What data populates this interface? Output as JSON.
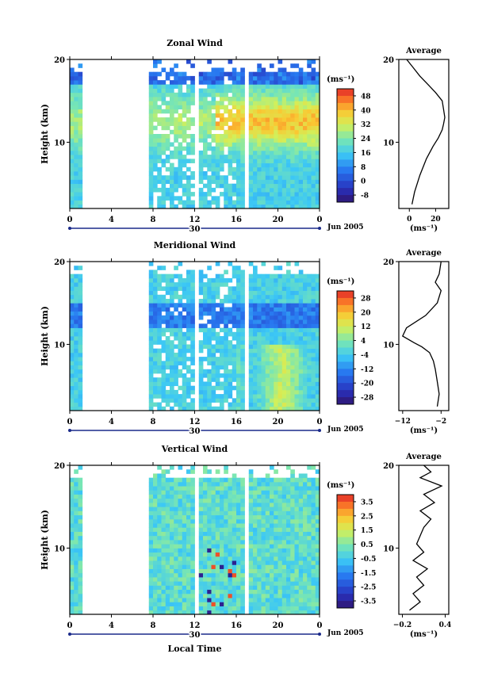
{
  "figure": {
    "xlabel": "Local Time",
    "date_label": "Jun 2005",
    "height_label": "Height (km)",
    "unit_label": "(ms⁻¹)",
    "day_marker": "30"
  },
  "chart_data": [
    {
      "type": "heatmap",
      "title": "Zonal Wind",
      "ylabel": "Height (km)",
      "xlabel": "",
      "xlim": [
        0,
        24
      ],
      "x_ticks": [
        "0",
        "4",
        "8",
        "12",
        "16",
        "20",
        "0"
      ],
      "ylim": [
        2,
        20
      ],
      "y_ticks": [
        "20",
        "10"
      ],
      "colorbar": {
        "unit": "(ms⁻¹)",
        "ticks": [
          48,
          40,
          32,
          24,
          16,
          8,
          0,
          -8
        ],
        "range": [
          -12,
          52
        ]
      },
      "data_gaps_hours": [
        [
          1.3,
          7.8
        ],
        [
          12.0,
          12.4
        ]
      ]
    },
    {
      "type": "line",
      "title": "Average",
      "xlabel": "(ms⁻¹)",
      "xlim": [
        -8,
        30
      ],
      "x_ticks": [
        "0",
        "20"
      ],
      "ylim": [
        2,
        20
      ],
      "y_ticks": [
        "20",
        "10"
      ],
      "series": [
        {
          "x": [
            2,
            4,
            8,
            13,
            18,
            22,
            25,
            26,
            27,
            26,
            25,
            20,
            14,
            8,
            3,
            -2
          ],
          "y": [
            2.5,
            4,
            6,
            8,
            9.5,
            10.5,
            11.5,
            12.2,
            13,
            14,
            15,
            16,
            17,
            18,
            19,
            20
          ]
        }
      ]
    },
    {
      "type": "heatmap",
      "title": "Meridional Wind",
      "ylabel": "Height (km)",
      "xlabel": "",
      "xlim": [
        0,
        24
      ],
      "x_ticks": [
        "0",
        "4",
        "8",
        "12",
        "16",
        "20",
        "0"
      ],
      "ylim": [
        2,
        20
      ],
      "y_ticks": [
        "20",
        "10"
      ],
      "colorbar": {
        "unit": "(ms⁻¹)",
        "ticks": [
          28,
          20,
          12,
          4,
          -4,
          -12,
          -20,
          -28
        ],
        "range": [
          -32,
          32
        ]
      },
      "data_gaps_hours": [
        [
          1.3,
          7.8
        ],
        [
          12.0,
          12.4
        ]
      ]
    },
    {
      "type": "line",
      "title": "Average",
      "xlabel": "(ms⁻¹)",
      "xlim": [
        -13,
        0
      ],
      "x_ticks": [
        "−12",
        "−2"
      ],
      "ylim": [
        2,
        20
      ],
      "y_ticks": [
        "20",
        "10"
      ],
      "series": [
        {
          "x": [
            -3,
            -2.5,
            -3,
            -3.5,
            -4,
            -5,
            -7,
            -9,
            -12,
            -11,
            -6,
            -3,
            -2,
            -3.5,
            -2.5,
            -2
          ],
          "y": [
            2.5,
            4,
            5.5,
            7,
            8,
            9,
            9.7,
            10.2,
            11,
            12,
            13.5,
            15,
            16.5,
            17.5,
            18.5,
            20
          ]
        }
      ]
    },
    {
      "type": "heatmap",
      "title": "Vertical Wind",
      "ylabel": "Height (km)",
      "xlabel": "Local Time",
      "xlim": [
        0,
        24
      ],
      "x_ticks": [
        "0",
        "4",
        "8",
        "12",
        "16",
        "20",
        "0"
      ],
      "ylim": [
        2,
        20
      ],
      "y_ticks": [
        "20",
        "10"
      ],
      "colorbar": {
        "unit": "(ms⁻¹)",
        "ticks": [
          3.5,
          2.5,
          1.5,
          0.5,
          -0.5,
          -1.5,
          -2.5,
          -3.5
        ],
        "range": [
          -4.0,
          4.0
        ]
      },
      "data_gaps_hours": [
        [
          1.3,
          7.8
        ],
        [
          12.0,
          12.4
        ]
      ]
    },
    {
      "type": "line",
      "title": "Average",
      "xlabel": "(ms⁻¹)",
      "xlim": [
        -0.25,
        0.45
      ],
      "x_ticks": [
        "−0.2",
        "0.4"
      ],
      "ylim": [
        2,
        20
      ],
      "y_ticks": [
        "20",
        "10"
      ],
      "series": [
        {
          "x": [
            -0.1,
            0.05,
            -0.05,
            0.1,
            0.0,
            0.15,
            -0.05,
            0.1,
            0.0,
            0.05,
            0.1,
            0.2,
            0.05,
            0.25,
            0.1,
            0.35,
            0.05,
            0.2,
            0.1
          ],
          "y": [
            2.5,
            3.5,
            4.5,
            5.5,
            6.5,
            7.5,
            8.5,
            9.5,
            10.5,
            11.5,
            12.5,
            13.5,
            14.5,
            15.5,
            16.5,
            17.5,
            18.5,
            19.2,
            20
          ]
        }
      ]
    }
  ]
}
